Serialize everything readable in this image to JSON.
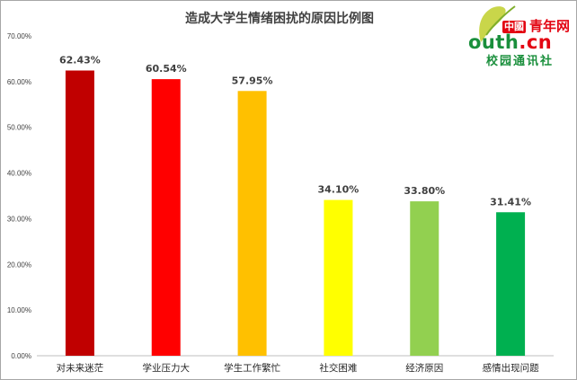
{
  "chart_data": {
    "type": "bar",
    "title": "造成大学生情绪困扰的原因比例图",
    "categories": [
      "对未来迷茫",
      "学业压力大",
      "学生工作繁忙",
      "社交困难",
      "经济原因",
      "感情出现问题"
    ],
    "values": [
      62.43,
      60.54,
      57.95,
      34.1,
      33.8,
      31.41
    ],
    "data_labels": [
      "62.43%",
      "60.54%",
      "57.95%",
      "34.10%",
      "33.80%",
      "31.41%"
    ],
    "colors": [
      "#c00000",
      "#ff0000",
      "#ffc000",
      "#ffff00",
      "#92d050",
      "#00b050"
    ],
    "y_ticks": [
      "0.00%",
      "10.00%",
      "20.00%",
      "30.00%",
      "40.00%",
      "50.00%",
      "60.00%",
      "70.00%"
    ],
    "ylim": [
      0,
      70
    ],
    "grid": false,
    "legend": "none"
  },
  "logo": {
    "china": "中國",
    "qingnian": "青年网",
    "youth": "outh",
    "dotcn": ".cn",
    "subtitle": "校园通讯社"
  }
}
